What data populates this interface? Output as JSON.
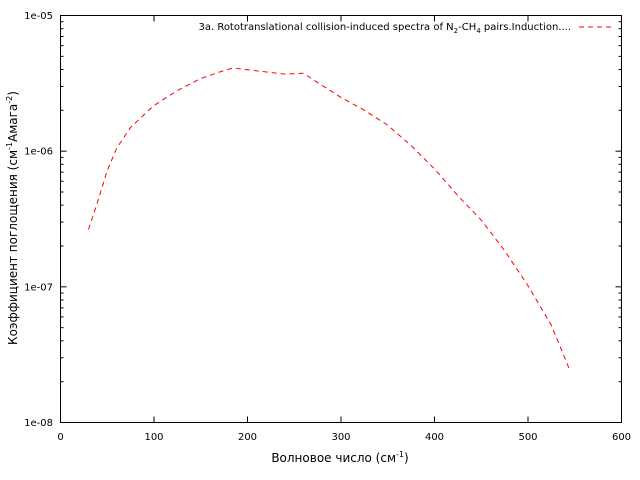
{
  "chart_data": {
    "type": "line",
    "title": "",
    "xlabel": {
      "text": "Волновое число (см",
      "sup": "-1",
      "tail": ")"
    },
    "ylabel": {
      "text": "Коэффициент поглощения (см",
      "sup1": "-1",
      "mid": "Амага",
      "sup2": "-2",
      "tail": ")"
    },
    "xlim": [
      0,
      600
    ],
    "ylim": [
      1e-08,
      1e-05
    ],
    "yscale": "log",
    "x_ticks": [
      "0",
      "100",
      "200",
      "300",
      "400",
      "500",
      "600"
    ],
    "y_ticks": [
      "1e-08",
      "1e-07",
      "1e-06",
      "1e-05"
    ],
    "grid": false,
    "legend_position": "top-right",
    "series": [
      {
        "name": "3a. Rototranslational collision-induced spectra of N2-CH4 pairs.Induction....",
        "name_parts": [
          "3a. Rototranslational collision-induced spectra of N",
          "2",
          "-CH",
          "4",
          " pairs.Induction...."
        ],
        "color": "#ff0000",
        "style": "dashed",
        "x": [
          30,
          40,
          50,
          60,
          75,
          100,
          125,
          150,
          175,
          185,
          200,
          225,
          240,
          260,
          275,
          300,
          325,
          350,
          375,
          400,
          425,
          450,
          475,
          500,
          525,
          545
        ],
        "y": [
          2.65e-07,
          4.3e-07,
          7.2e-07,
          1.05e-06,
          1.5e-06,
          2.17e-06,
          2.8e-06,
          3.43e-06,
          3.93e-06,
          4.1e-06,
          3.98e-06,
          3.8e-06,
          3.7e-06,
          3.75e-06,
          3.2e-06,
          2.49e-06,
          2e-06,
          1.55e-06,
          1.1e-06,
          7.4e-07,
          4.7e-07,
          3.1e-07,
          1.85e-07,
          1.02e-07,
          5.2e-08,
          2.4e-08
        ]
      }
    ]
  }
}
